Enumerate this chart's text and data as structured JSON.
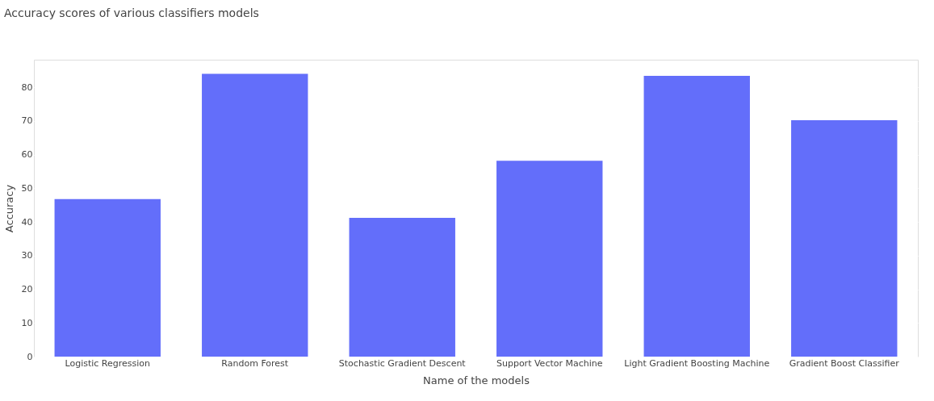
{
  "chart_data": {
    "type": "bar",
    "title": "Accuracy scores of various classifiers models",
    "xlabel": "Name of the models",
    "ylabel": "Accuracy",
    "categories": [
      "Logistic Regression",
      "Random Forest",
      "Stochastic Gradient Descent",
      "Support Vector Machine",
      "Light Gradient Boosting Machine",
      "Gradient Boost Classifier"
    ],
    "values": [
      46.8,
      84.0,
      41.2,
      58.2,
      83.4,
      70.2
    ],
    "color": "#636efa",
    "ylim": [
      0,
      88.2
    ],
    "yticks": [
      0,
      10,
      20,
      30,
      40,
      50,
      60,
      70,
      80
    ],
    "grid": "y"
  }
}
